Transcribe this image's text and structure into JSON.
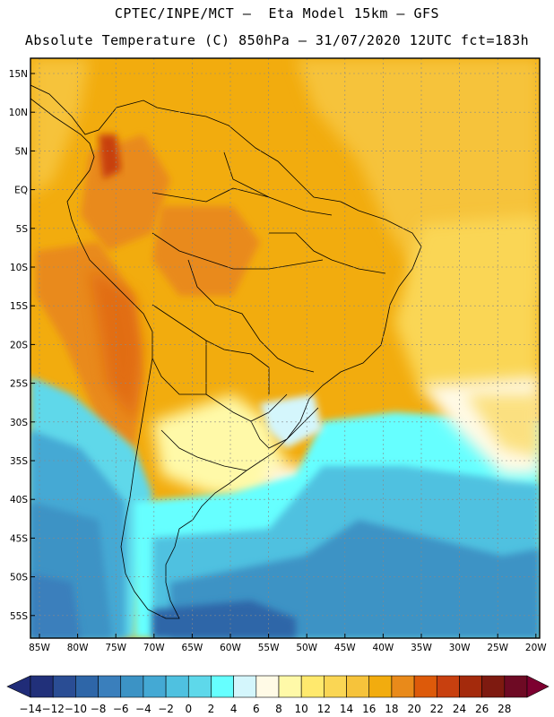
{
  "header": {
    "line1": "CPTEC/INPE/MCT –  Eta Model 15km – GFS",
    "line2": "Absolute Temperature (C) 850hPa – 31/07/2020 12UTC fct=183h"
  },
  "map": {
    "lat_labels": [
      "15N",
      "10N",
      "5N",
      "EQ",
      "5S",
      "10S",
      "15S",
      "20S",
      "25S",
      "30S",
      "35S",
      "40S",
      "45S",
      "50S",
      "55S"
    ],
    "lon_labels": [
      "85W",
      "80W",
      "75W",
      "70W",
      "65W",
      "60W",
      "55W",
      "50W",
      "45W",
      "40W",
      "35W",
      "30W",
      "25W",
      "20W"
    ]
  },
  "colorbar": {
    "labels": [
      "-14",
      "-12",
      "-10",
      "-8",
      "-6",
      "-4",
      "-2",
      "0",
      "2",
      "4",
      "6",
      "8",
      "10",
      "12",
      "14",
      "16",
      "18",
      "20",
      "22",
      "24",
      "26",
      "28"
    ],
    "colors": [
      "#21307a",
      "#2a4d94",
      "#2e66a8",
      "#3a7fbc",
      "#3c93c5",
      "#44a9d4",
      "#4fc1e0",
      "#5ed8ea",
      "#66ffff",
      "#d4f6fc",
      "#fffae6",
      "#fff9a8",
      "#ffe96d",
      "#fad654",
      "#f6c33b",
      "#f2ac0e",
      "#e98a1a",
      "#dd5a0a",
      "#c8400f",
      "#a42a0c",
      "#7e1a10",
      "#6e0a24"
    ],
    "end_left_color": "#202c78",
    "end_right_color": "#7d0030"
  }
}
